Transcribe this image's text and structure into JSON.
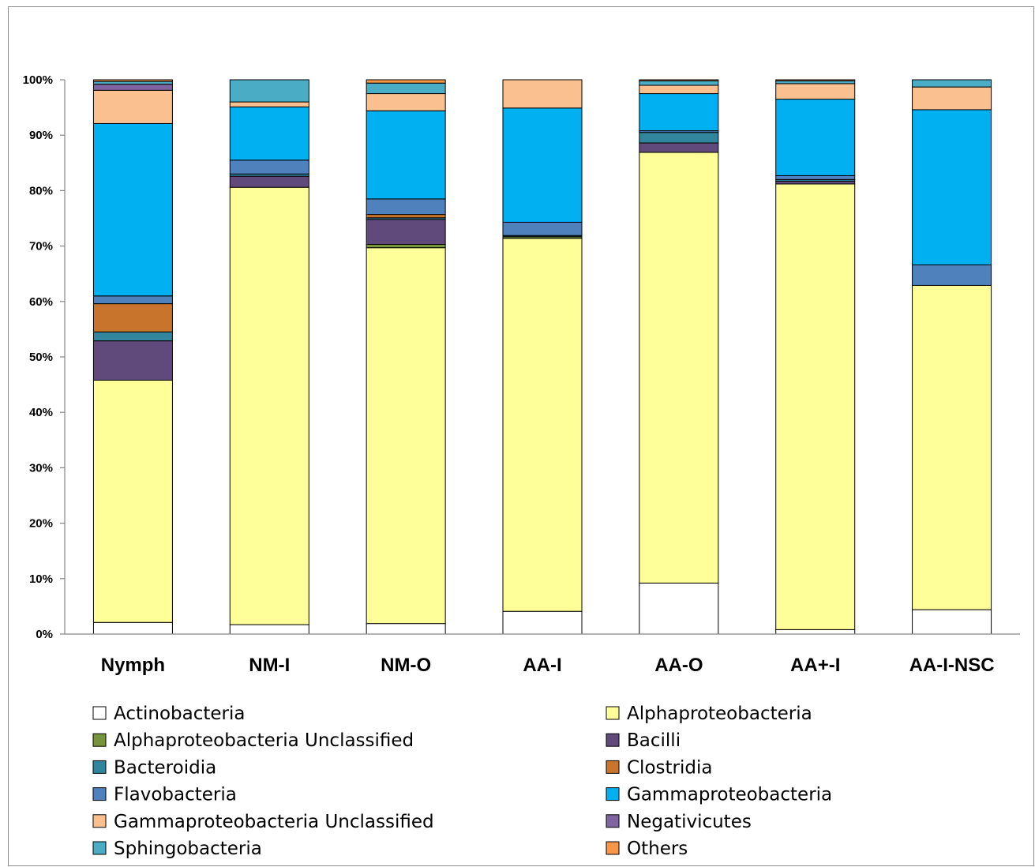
{
  "chart_data": {
    "type": "bar",
    "stacked": "percent",
    "title": "",
    "xlabel": "",
    "ylabel": "",
    "ylim": [
      0,
      100
    ],
    "yticks": [
      "0%",
      "10%",
      "20%",
      "30%",
      "40%",
      "50%",
      "60%",
      "70%",
      "80%",
      "90%",
      "100%"
    ],
    "grid": false,
    "legend": "bottom",
    "categories": [
      "Nymph",
      "NM-I",
      "NM-O",
      "AA-I",
      "AA-O",
      "AA+-I",
      "AA-I-NSC"
    ],
    "series": [
      {
        "name": "Actinobacteria",
        "color": "#ffffff",
        "values": [
          2.1,
          1.7,
          1.9,
          4.1,
          9.2,
          0.8,
          4.4
        ]
      },
      {
        "name": "Alphaproteobacteria",
        "color": "#ffff99",
        "values": [
          43.7,
          78.9,
          67.8,
          67.3,
          77.7,
          80.4,
          58.5
        ]
      },
      {
        "name": "Alphaproteobacteria Unclassified",
        "color": "#77933c",
        "values": [
          0.0,
          0.0,
          0.6,
          0.3,
          0.0,
          0.0,
          0.0
        ]
      },
      {
        "name": "Bacilli",
        "color": "#604a7b",
        "values": [
          7.1,
          2.0,
          4.5,
          0.0,
          1.7,
          0.5,
          0.0
        ]
      },
      {
        "name": "Bacteroidia",
        "color": "#31859c",
        "values": [
          1.6,
          0.4,
          0.3,
          0.2,
          1.9,
          0.3,
          0.0
        ]
      },
      {
        "name": "Clostridia",
        "color": "#c8742c",
        "values": [
          5.1,
          0.0,
          0.6,
          0.0,
          0.0,
          0.0,
          0.0
        ]
      },
      {
        "name": "Flavobacteria",
        "color": "#4f81bd",
        "values": [
          1.4,
          2.5,
          2.8,
          2.4,
          0.3,
          0.7,
          3.7
        ]
      },
      {
        "name": "Gammaproteobacteria",
        "color": "#00b0f0",
        "values": [
          31.1,
          9.6,
          15.9,
          20.6,
          6.7,
          13.8,
          28.0
        ]
      },
      {
        "name": "Gammaproteobacteria Unclassified",
        "color": "#fac090",
        "values": [
          6.0,
          0.9,
          3.1,
          5.1,
          1.5,
          2.8,
          4.1
        ]
      },
      {
        "name": "Negativicutes",
        "color": "#8064a2",
        "values": [
          1.1,
          0.0,
          0.0,
          0.0,
          0.0,
          0.0,
          0.0
        ]
      },
      {
        "name": "Sphingobacteria",
        "color": "#4bacc6",
        "values": [
          0.5,
          4.0,
          1.9,
          0.0,
          0.8,
          0.5,
          1.3
        ]
      },
      {
        "name": "Others",
        "color": "#f79646",
        "values": [
          0.3,
          0.0,
          0.6,
          0.0,
          0.2,
          0.2,
          0.0
        ]
      }
    ]
  }
}
